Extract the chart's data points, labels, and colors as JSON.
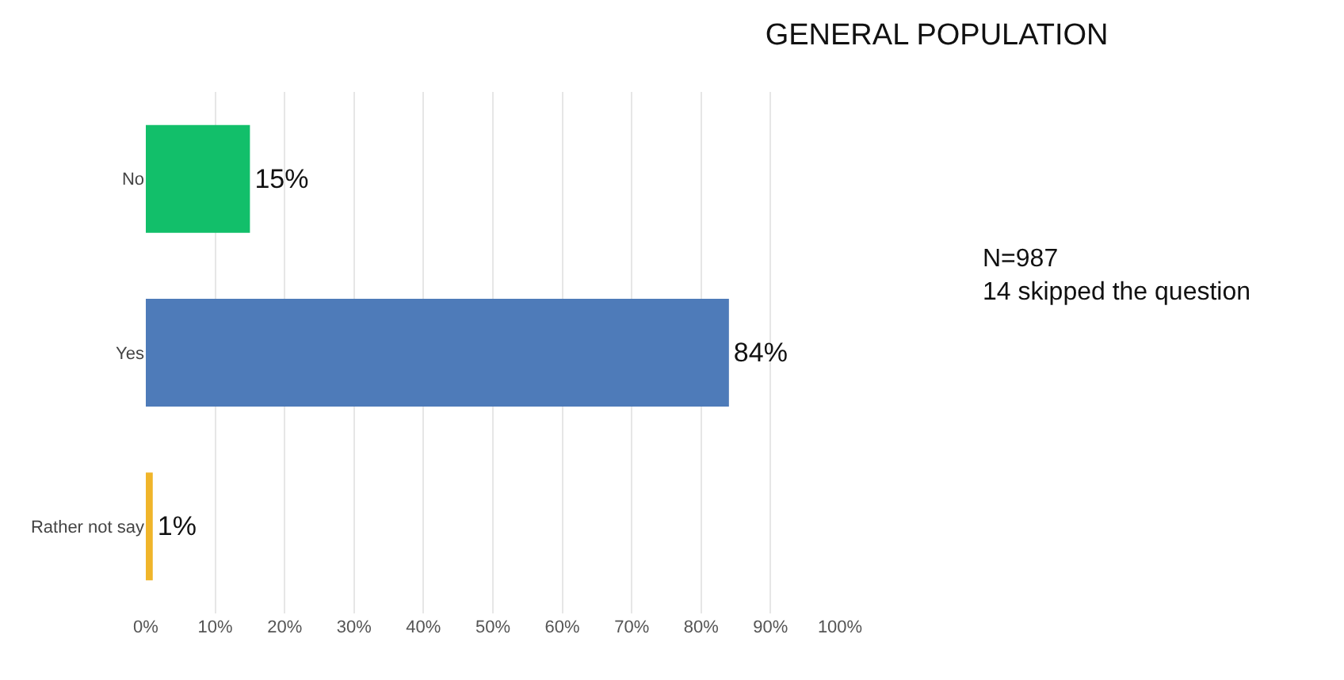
{
  "chart_data": {
    "type": "bar",
    "orientation": "horizontal",
    "title": "GENERAL POPULATION",
    "categories": [
      "No",
      "Yes",
      "Rather not say"
    ],
    "values": [
      15,
      84,
      1
    ],
    "colors": [
      "#12bf6a",
      "#4e7bb9",
      "#f0b52a"
    ],
    "value_labels": [
      "15%",
      "84%",
      "1%"
    ],
    "xlim": [
      0,
      100
    ],
    "xticks": [
      {
        "value": 0,
        "label": "0%"
      },
      {
        "value": 10,
        "label": "10%"
      },
      {
        "value": 20,
        "label": "20%"
      },
      {
        "value": 30,
        "label": "30%"
      },
      {
        "value": 40,
        "label": "40%"
      },
      {
        "value": 50,
        "label": "50%"
      },
      {
        "value": 60,
        "label": "60%"
      },
      {
        "value": 70,
        "label": "70%"
      },
      {
        "value": 80,
        "label": "80%"
      },
      {
        "value": 90,
        "label": "90%"
      },
      {
        "value": 100,
        "label": "100%"
      }
    ],
    "grid": "x",
    "annotations": [
      "N=987",
      "14 skipped the question"
    ]
  }
}
